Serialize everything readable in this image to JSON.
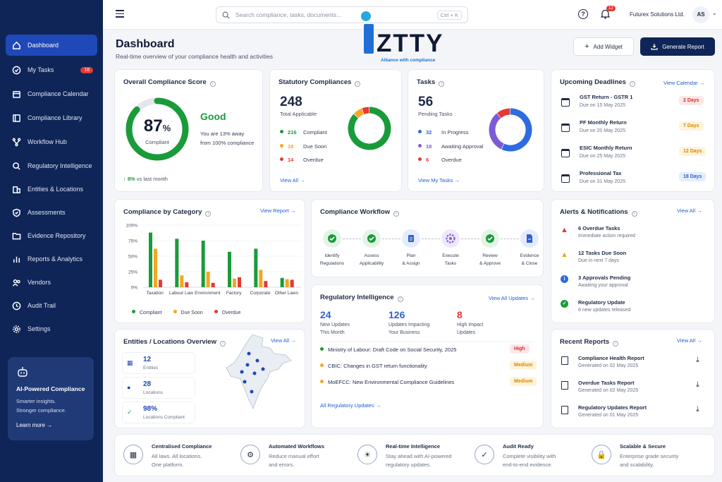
{
  "sidebar": {
    "items": [
      {
        "label": "Dashboard",
        "icon": "home-icon"
      },
      {
        "label": "My Tasks",
        "icon": "check-circle-icon",
        "badge": "18"
      },
      {
        "label": "Compliance Calendar",
        "icon": "calendar-icon"
      },
      {
        "label": "Compliance Library",
        "icon": "library-icon"
      },
      {
        "label": "Workflow Hub",
        "icon": "workflow-icon"
      },
      {
        "label": "Regulatory Intelligence",
        "icon": "search-icon"
      },
      {
        "label": "Entities & Locations",
        "icon": "building-icon"
      },
      {
        "label": "Assessments",
        "icon": "shield-icon"
      },
      {
        "label": "Evidence Repository",
        "icon": "folder-icon"
      },
      {
        "label": "Reports & Analytics",
        "icon": "chart-icon"
      },
      {
        "label": "Vendors",
        "icon": "users-icon"
      },
      {
        "label": "Audit Trail",
        "icon": "history-icon"
      },
      {
        "label": "Settings",
        "icon": "gear-icon"
      }
    ],
    "ai": {
      "title": "AI-Powered Compliance",
      "line1": "Smarter insights.",
      "line2": "Stronger compliance.",
      "link": "Learn more"
    }
  },
  "topbar": {
    "search_placeholder": "Search compliance, tasks, documents...",
    "shortcut": "Ctrl + K",
    "notif_count": "12",
    "company": "Futurex Solutions Ltd.",
    "avatar": "AS"
  },
  "logo": {
    "name": "ZTTY",
    "tagline": "Alliance with compliance"
  },
  "page": {
    "title": "Dashboard",
    "subtitle": "Real-time overview of your compliance health and activities",
    "add_widget": "Add Widget",
    "generate_report": "Generate Report"
  },
  "score": {
    "title": "Overall Compliance Score",
    "value": "87",
    "pct": "%",
    "label": "Compliant",
    "status": "Good",
    "desc1": "You are 13% away",
    "desc2": "from 100% compliance",
    "trend": "8%",
    "trend_text": "vs last month",
    "fraction": 0.87,
    "color": "#1a9b3a"
  },
  "statutory": {
    "title": "Statutory Compliances",
    "total": "248",
    "total_label": "Total Applicable",
    "items": [
      {
        "value": "216",
        "label": "Compliant",
        "color": "#1a9b3a"
      },
      {
        "value": "18",
        "label": "Due Soon",
        "color": "#f5a623"
      },
      {
        "value": "14",
        "label": "Overdue",
        "color": "#e53935"
      }
    ],
    "link": "View All"
  },
  "tasks": {
    "title": "Tasks",
    "total": "56",
    "total_label": "Pending Tasks",
    "items": [
      {
        "value": "32",
        "label": "In Progress",
        "color": "#2f6be0"
      },
      {
        "value": "18",
        "label": "Awaiting Approval",
        "color": "#7c5cd6"
      },
      {
        "value": "6",
        "label": "Overdue",
        "color": "#e53935"
      }
    ],
    "link": "View My Tasks"
  },
  "deadlines": {
    "title": "Upcoming Deadlines",
    "link": "View Calendar",
    "items": [
      {
        "name": "GST Return - GSTR 1",
        "due": "Due on 15 May 2025",
        "days": "2 Days",
        "bg": "#fde7e7",
        "fg": "#d32f2f"
      },
      {
        "name": "PF Monthly Return",
        "due": "Due on 20 May 2025",
        "days": "7 Days",
        "bg": "#fff3dc",
        "fg": "#d68a00"
      },
      {
        "name": "ESIC Monthly Return",
        "due": "Due on 25 May 2025",
        "days": "12 Days",
        "bg": "#fff3dc",
        "fg": "#d68a00"
      },
      {
        "name": "Professional Tax",
        "due": "Due on 31 May 2025",
        "days": "18 Days",
        "bg": "#e4edfc",
        "fg": "#2f5fd0"
      }
    ]
  },
  "category": {
    "title": "Compliance by Category",
    "link": "View Report"
  },
  "chart_data": {
    "type": "bar",
    "categories": [
      "Taxation",
      "Labour Law",
      "Environment",
      "Factory",
      "Corporate",
      "Other Laws"
    ],
    "series": [
      {
        "name": "Compliant",
        "color": "#1a9b3a",
        "values": [
          88,
          78,
          75,
          57,
          62,
          15
        ]
      },
      {
        "name": "Due Soon",
        "color": "#f5a623",
        "values": [
          62,
          19,
          25,
          14,
          28,
          13
        ]
      },
      {
        "name": "Overdue",
        "color": "#e53935",
        "values": [
          12,
          8,
          7,
          16,
          10,
          12
        ]
      }
    ],
    "yticks": [
      "100%",
      "75%",
      "50%",
      "25%",
      "0%"
    ],
    "ylim": [
      0,
      100
    ]
  },
  "workflow": {
    "title": "Compliance Workflow",
    "steps": [
      {
        "l1": "Identify",
        "l2": "Regulations"
      },
      {
        "l1": "Assess",
        "l2": "Applicability"
      },
      {
        "l1": "Plan",
        "l2": "& Assign"
      },
      {
        "l1": "Execute",
        "l2": "Tasks"
      },
      {
        "l1": "Review",
        "l2": "& Approve"
      },
      {
        "l1": "Evidence",
        "l2": "& Close"
      }
    ]
  },
  "alerts": {
    "title": "Alerts & Notifications",
    "link": "View All",
    "items": [
      {
        "title": "6 Overdue Tasks",
        "sub": "Immediate action required",
        "color": "#e53935"
      },
      {
        "title": "12 Tasks Due Soon",
        "sub": "Due in next 7 days",
        "color": "#f5a623"
      },
      {
        "title": "3 Approvals Pending",
        "sub": "Awaiting your approval",
        "color": "#2f6be0"
      },
      {
        "title": "Regulatory Update",
        "sub": "8 new updates released",
        "color": "#1a9b3a"
      }
    ]
  },
  "regint": {
    "title": "Regulatory Intelligence",
    "link": "View All Updates",
    "stats": [
      {
        "value": "24",
        "l1": "New Updates",
        "l2": "This Month",
        "color": "#2f5fd0"
      },
      {
        "value": "126",
        "l1": "Updates Impacting",
        "l2": "Your Business",
        "color": "#2f5fd0"
      },
      {
        "value": "8",
        "l1": "High Impact",
        "l2": "Updates",
        "color": "#e53935"
      }
    ],
    "items": [
      {
        "text": "Ministry of Labour: Draft Code on Social Security, 2025",
        "tag": "High",
        "dot": "#1a9b3a",
        "bg": "#fde7e7",
        "fg": "#d32f2f"
      },
      {
        "text": "CBIC: Changes in GST return functionality",
        "tag": "Medium",
        "dot": "#f5a623",
        "bg": "#fff3dc",
        "fg": "#d68a00"
      },
      {
        "text": "MoEFCC: New Environmental Compliance Guidelines",
        "tag": "Medium",
        "dot": "#f5a623",
        "bg": "#fff3dc",
        "fg": "#d68a00"
      }
    ],
    "footer": "All Regulatory Updates"
  },
  "entities": {
    "title": "Entities / Locations Overview",
    "link": "View All",
    "items": [
      {
        "value": "12",
        "label": "Entities"
      },
      {
        "value": "28",
        "label": "Locations"
      },
      {
        "value": "98%",
        "label": "Locations Compliant"
      }
    ]
  },
  "reports": {
    "title": "Recent Reports",
    "link": "View All",
    "items": [
      {
        "name": "Compliance Health Report",
        "date": "Generated on 02 May 2025"
      },
      {
        "name": "Overdue Tasks Report",
        "date": "Generated on 02 May 2025"
      },
      {
        "name": "Regulatory Updates Report",
        "date": "Generated on 01 May 2025"
      }
    ]
  },
  "features": [
    {
      "t": "Centralised Compliance",
      "s1": "All laws. All locations.",
      "s2": "One platform."
    },
    {
      "t": "Automated Workflows",
      "s1": "Reduce manual effort",
      "s2": "and errors."
    },
    {
      "t": "Real-time Intelligence",
      "s1": "Stay ahead with AI-powered",
      "s2": "regulatory updates."
    },
    {
      "t": "Audit Ready",
      "s1": "Complete visibility with",
      "s2": "end-to-end evidence."
    },
    {
      "t": "Scalable & Secure",
      "s1": "Enterprise grade security",
      "s2": "and scalability."
    }
  ]
}
